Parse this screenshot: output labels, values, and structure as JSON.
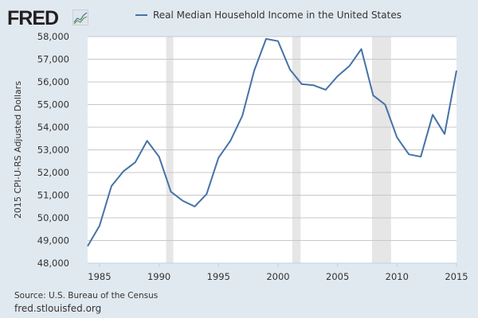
{
  "logo": {
    "text": "FRED"
  },
  "source": "Source: U.S. Bureau of the Census",
  "url": "fred.stlouisfed.org",
  "colors": {
    "line": "#4572a7",
    "recession": "#e6e6e6",
    "grid": "#c8c8c8"
  },
  "chart_data": {
    "type": "line",
    "title": "",
    "legend": [
      "Real Median Household Income in the United States"
    ],
    "legend_placement": "top",
    "xlabel": "",
    "ylabel": "2015 CPI-U-RS Adjusted Dollars",
    "xlim": [
      1984,
      2015
    ],
    "ylim": [
      48000,
      58000
    ],
    "xticks": [
      "1985",
      "1990",
      "1995",
      "2000",
      "2005",
      "2010",
      "2015"
    ],
    "yticks": [
      "48,000",
      "49,000",
      "50,000",
      "51,000",
      "52,000",
      "53,000",
      "54,000",
      "55,000",
      "56,000",
      "57,000",
      "58,000"
    ],
    "grid": true,
    "recessions": [
      [
        1990.6,
        1991.2
      ],
      [
        2001.2,
        2001.9
      ],
      [
        2007.9,
        2009.5
      ]
    ],
    "series": [
      {
        "name": "Real Median Household Income in the United States",
        "x": [
          1984,
          1985,
          1986,
          1987,
          1988,
          1989,
          1990,
          1991,
          1992,
          1993,
          1994,
          1995,
          1996,
          1997,
          1998,
          1999,
          2000,
          2001,
          2002,
          2003,
          2004,
          2005,
          2006,
          2007,
          2008,
          2009,
          2010,
          2011,
          2012,
          2013,
          2014,
          2015
        ],
        "values": [
          48750,
          49650,
          51400,
          52050,
          52450,
          53400,
          52700,
          51150,
          50750,
          50500,
          51050,
          52650,
          53400,
          54500,
          56500,
          57900,
          57800,
          56550,
          55900,
          55850,
          55650,
          56250,
          56700,
          57450,
          55400,
          55000,
          53550,
          52800,
          52700,
          54550,
          53700,
          56500
        ]
      }
    ]
  }
}
